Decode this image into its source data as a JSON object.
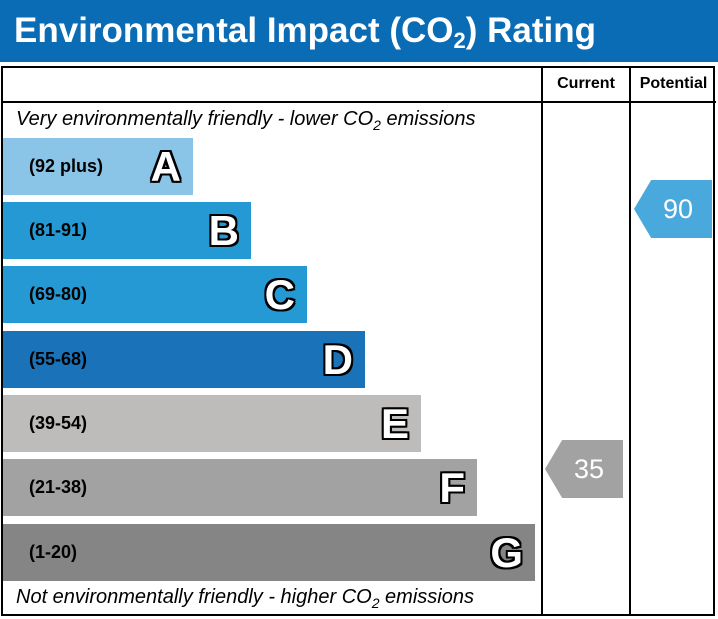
{
  "title": {
    "pre": "Environmental Impact (CO",
    "sub": "2",
    "post": ") Rating"
  },
  "columns": {
    "current": "Current",
    "potential": "Potential"
  },
  "top_note": {
    "pre": "Very environmentally friendly - lower CO",
    "sub": "2",
    "post": " emissions"
  },
  "bottom_note": {
    "pre": "Not environmentally friendly - higher CO",
    "sub": "2",
    "post": " emissions"
  },
  "chart_data": {
    "type": "bar",
    "bands": [
      {
        "letter": "A",
        "range": "(92 plus)",
        "color": "#8ac5e8"
      },
      {
        "letter": "B",
        "range": "(81-91)",
        "color": "#2599d3"
      },
      {
        "letter": "C",
        "range": "(69-80)",
        "color": "#2599d3"
      },
      {
        "letter": "D",
        "range": "(55-68)",
        "color": "#1a72b8"
      },
      {
        "letter": "E",
        "range": "(39-54)",
        "color": "#bdbcbb"
      },
      {
        "letter": "F",
        "range": "(21-38)",
        "color": "#a2a2a3"
      },
      {
        "letter": "G",
        "range": "(1-20)",
        "color": "#858586"
      }
    ],
    "current": {
      "value": "35",
      "band": "F",
      "color": "#a2a2a3"
    },
    "potential": {
      "value": "90",
      "band": "B",
      "color": "#4aa9dc"
    }
  }
}
